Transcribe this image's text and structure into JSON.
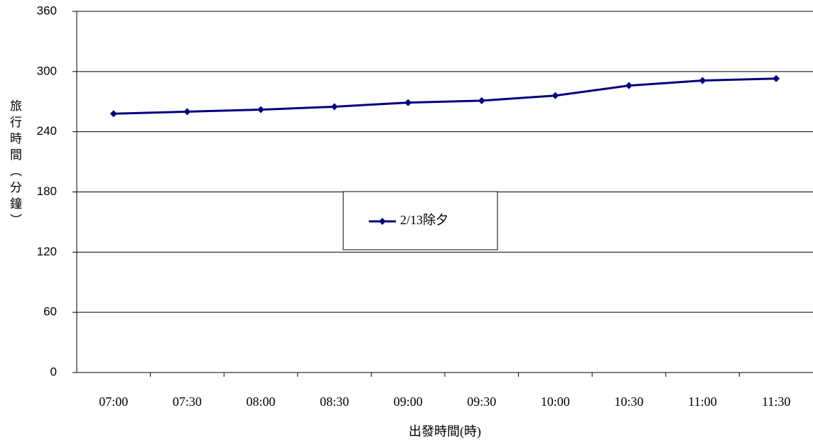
{
  "chart_data": {
    "type": "line",
    "x_label": "出發時間(時)",
    "y_label": "旅行時間（分鐘）",
    "categories": [
      "07:00",
      "07:30",
      "08:00",
      "08:30",
      "09:00",
      "09:30",
      "10:00",
      "10:30",
      "11:00",
      "11:30"
    ],
    "series": [
      {
        "name": "2/13除夕",
        "color": "#000080",
        "values": [
          258,
          260,
          262,
          265,
          269,
          271,
          276,
          286,
          291,
          293
        ]
      }
    ],
    "ylim": [
      0,
      360
    ],
    "yticks": [
      0,
      60,
      120,
      180,
      240,
      300,
      360
    ],
    "grid": true
  }
}
